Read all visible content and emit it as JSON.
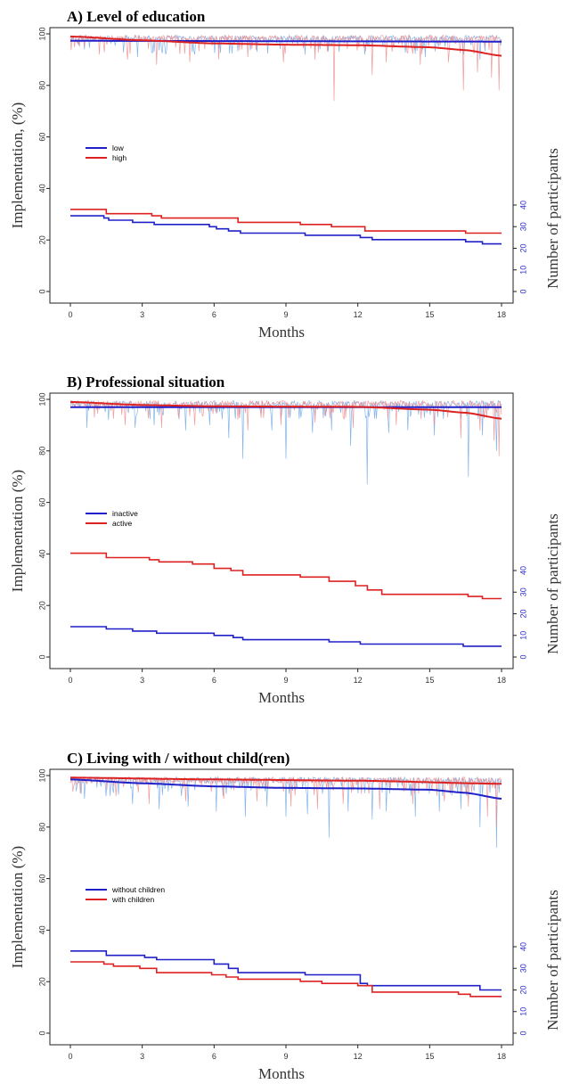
{
  "chart_data": [
    {
      "type": "line",
      "title": "A) Level of education",
      "ylabel": "Implementation, (%)",
      "xlabel": "Months",
      "y2label": "Number of participants",
      "xlim": [
        0,
        18
      ],
      "ylim": [
        0,
        100
      ],
      "y2lim": [
        0,
        40
      ],
      "xticks": [
        "0",
        "3",
        "6",
        "9",
        "12",
        "15",
        "18"
      ],
      "yticks": [
        "0",
        "20",
        "40",
        "60",
        "80",
        "100"
      ],
      "y2ticks": [
        "0",
        "10",
        "20",
        "30",
        "40"
      ],
      "legend": {
        "position": "left-middle"
      },
      "series": [
        {
          "name": "low",
          "color": "#2020c8",
          "noise_color": "#6fa8e8",
          "implementation_trend": [
            [
              0,
              97.3
            ],
            [
              18,
              97.0
            ]
          ],
          "participants": [
            [
              0,
              35
            ],
            [
              1.4,
              34
            ],
            [
              1.6,
              33
            ],
            [
              2.6,
              32
            ],
            [
              3.5,
              31
            ],
            [
              5.8,
              30
            ],
            [
              6.1,
              29
            ],
            [
              6.6,
              28
            ],
            [
              7.1,
              27
            ],
            [
              9.8,
              26
            ],
            [
              12.1,
              25
            ],
            [
              12.6,
              24
            ],
            [
              16.5,
              23
            ],
            [
              17.2,
              22
            ],
            [
              18,
              22
            ]
          ],
          "dips": [
            [
              0.6,
              94
            ],
            [
              2.8,
              91
            ],
            [
              3.5,
              93
            ],
            [
              5.2,
              92
            ],
            [
              7.8,
              93
            ],
            [
              9.8,
              92
            ],
            [
              11.2,
              93
            ],
            [
              12.3,
              92
            ],
            [
              14.8,
              91
            ],
            [
              16.4,
              92
            ],
            [
              17.1,
              90
            ]
          ]
        },
        {
          "name": "high",
          "color": "#dd2222",
          "noise_color": "#f08a8a",
          "implementation_trend": [
            [
              0,
              99.0
            ],
            [
              3,
              97.5
            ],
            [
              6,
              96.3
            ],
            [
              9,
              95.8
            ],
            [
              12,
              95.6
            ],
            [
              15,
              94.8
            ],
            [
              16.5,
              93.7
            ],
            [
              18,
              91.5
            ]
          ],
          "participants": [
            [
              0,
              38
            ],
            [
              1.5,
              36
            ],
            [
              3.4,
              35
            ],
            [
              3.8,
              34
            ],
            [
              7.0,
              32
            ],
            [
              9.6,
              31
            ],
            [
              10.9,
              30
            ],
            [
              12.3,
              28
            ],
            [
              16.5,
              27
            ],
            [
              18,
              27
            ]
          ],
          "dips": [
            [
              0.3,
              96
            ],
            [
              1.2,
              92
            ],
            [
              2.4,
              90
            ],
            [
              3.6,
              88
            ],
            [
              5.0,
              89
            ],
            [
              6.2,
              90
            ],
            [
              7.4,
              91
            ],
            [
              8.9,
              89
            ],
            [
              10.2,
              90
            ],
            [
              11.0,
              74
            ],
            [
              12.6,
              84
            ],
            [
              13.2,
              89
            ],
            [
              14.6,
              88
            ],
            [
              15.8,
              89
            ],
            [
              16.4,
              78
            ],
            [
              17.0,
              85
            ],
            [
              17.6,
              83
            ],
            [
              17.9,
              78
            ]
          ]
        }
      ]
    },
    {
      "type": "line",
      "title": "B) Professional situation",
      "ylabel": "Implementation (%)",
      "xlabel": "Months",
      "y2label": "Number of participants",
      "xlim": [
        0,
        18
      ],
      "ylim": [
        0,
        100
      ],
      "y2lim": [
        0,
        40
      ],
      "xticks": [
        "0",
        "3",
        "6",
        "9",
        "12",
        "15",
        "18"
      ],
      "yticks": [
        "0",
        "20",
        "40",
        "60",
        "80",
        "100"
      ],
      "y2ticks": [
        "0",
        "10",
        "20",
        "30",
        "40"
      ],
      "legend": {
        "position": "left-middle"
      },
      "series": [
        {
          "name": "inactive",
          "color": "#2020c8",
          "noise_color": "#6fa8e8",
          "implementation_trend": [
            [
              0,
              97.0
            ],
            [
              18,
              97.0
            ]
          ],
          "participants": [
            [
              0,
              14
            ],
            [
              1.5,
              13
            ],
            [
              2.6,
              12
            ],
            [
              3.6,
              11
            ],
            [
              6.0,
              10
            ],
            [
              6.8,
              9
            ],
            [
              7.2,
              8
            ],
            [
              10.8,
              7
            ],
            [
              12.1,
              6
            ],
            [
              16.4,
              5
            ],
            [
              18,
              5
            ]
          ],
          "dips": [
            [
              0.7,
              89
            ],
            [
              1.6,
              92
            ],
            [
              2.7,
              89
            ],
            [
              3.5,
              90
            ],
            [
              4.8,
              88
            ],
            [
              5.8,
              90
            ],
            [
              6.6,
              85
            ],
            [
              7.2,
              77
            ],
            [
              8.4,
              88
            ],
            [
              9.0,
              77
            ],
            [
              10.1,
              87
            ],
            [
              10.9,
              88
            ],
            [
              11.7,
              82
            ],
            [
              12.4,
              67
            ],
            [
              13.3,
              87
            ],
            [
              14.1,
              88
            ],
            [
              15.2,
              86
            ],
            [
              16.6,
              70
            ],
            [
              17.2,
              86
            ],
            [
              17.8,
              80
            ]
          ]
        },
        {
          "name": "active",
          "color": "#dd2222",
          "noise_color": "#f08a8a",
          "implementation_trend": [
            [
              0,
              99.0
            ],
            [
              3,
              97.8
            ],
            [
              6,
              97.3
            ],
            [
              9,
              97.2
            ],
            [
              12,
              97.1
            ],
            [
              15,
              96.0
            ],
            [
              16.5,
              94.8
            ],
            [
              18,
              92.5
            ]
          ],
          "participants": [
            [
              0,
              48
            ],
            [
              1.5,
              46
            ],
            [
              3.3,
              45
            ],
            [
              3.7,
              44
            ],
            [
              5.1,
              43
            ],
            [
              6.0,
              41
            ],
            [
              6.7,
              40
            ],
            [
              7.2,
              38
            ],
            [
              9.6,
              37
            ],
            [
              10.8,
              35
            ],
            [
              11.9,
              33
            ],
            [
              12.4,
              31
            ],
            [
              13.0,
              29
            ],
            [
              16.6,
              28
            ],
            [
              17.2,
              27
            ],
            [
              18,
              27
            ]
          ],
          "dips": [
            [
              1.0,
              93
            ],
            [
              2.3,
              90
            ],
            [
              3.8,
              89
            ],
            [
              5.2,
              90
            ],
            [
              7.4,
              88
            ],
            [
              8.8,
              90
            ],
            [
              10.2,
              91
            ],
            [
              11.8,
              89
            ],
            [
              13.6,
              90
            ],
            [
              15.2,
              90
            ],
            [
              16.3,
              85
            ],
            [
              17.1,
              88
            ],
            [
              17.7,
              84
            ],
            [
              17.9,
              78
            ]
          ]
        }
      ]
    },
    {
      "type": "line",
      "title": "C) Living with / without child(ren)",
      "ylabel": "Implementation (%)",
      "xlabel": "Months",
      "y2label": "Number of participants",
      "xlim": [
        0,
        18
      ],
      "ylim": [
        0,
        100
      ],
      "y2lim": [
        0,
        40
      ],
      "xticks": [
        "0",
        "3",
        "6",
        "9",
        "12",
        "15",
        "18"
      ],
      "yticks": [
        "0",
        "20",
        "40",
        "60",
        "80",
        "100"
      ],
      "y2ticks": [
        "0",
        "10",
        "20",
        "30",
        "40"
      ],
      "legend": {
        "position": "left-middle"
      },
      "series": [
        {
          "name": "without children",
          "color": "#2020c8",
          "noise_color": "#6fa8e8",
          "implementation_trend": [
            [
              0,
              98.5
            ],
            [
              3,
              97.0
            ],
            [
              6,
              95.8
            ],
            [
              9,
              95.2
            ],
            [
              12,
              95.0
            ],
            [
              15,
              94.5
            ],
            [
              16.5,
              93.3
            ],
            [
              18,
              91.0
            ]
          ],
          "participants": [
            [
              0,
              38
            ],
            [
              1.5,
              36
            ],
            [
              3.1,
              35
            ],
            [
              3.6,
              34
            ],
            [
              6.0,
              32
            ],
            [
              6.6,
              30
            ],
            [
              7.0,
              28
            ],
            [
              9.8,
              27
            ],
            [
              12.1,
              23
            ],
            [
              12.4,
              22
            ],
            [
              17.1,
              20
            ],
            [
              18,
              20
            ]
          ],
          "dips": [
            [
              0.6,
              91
            ],
            [
              1.5,
              92
            ],
            [
              2.6,
              89
            ],
            [
              3.7,
              87
            ],
            [
              4.9,
              88
            ],
            [
              6.1,
              86
            ],
            [
              7.3,
              84
            ],
            [
              8.2,
              88
            ],
            [
              9.0,
              84
            ],
            [
              9.9,
              85
            ],
            [
              10.8,
              76
            ],
            [
              11.6,
              86
            ],
            [
              12.6,
              83
            ],
            [
              13.2,
              86
            ],
            [
              14.4,
              84
            ],
            [
              15.4,
              86
            ],
            [
              16.3,
              87
            ],
            [
              17.1,
              80
            ],
            [
              17.8,
              72
            ]
          ]
        },
        {
          "name": "with children",
          "color": "#dd2222",
          "noise_color": "#f08a8a",
          "implementation_trend": [
            [
              0,
              99.2
            ],
            [
              6,
              98.5
            ],
            [
              12,
              98.0
            ],
            [
              18,
              96.8
            ]
          ],
          "participants": [
            [
              0,
              33
            ],
            [
              1.4,
              32
            ],
            [
              1.8,
              31
            ],
            [
              2.9,
              30
            ],
            [
              3.6,
              28
            ],
            [
              5.9,
              27
            ],
            [
              6.5,
              26
            ],
            [
              7.0,
              25
            ],
            [
              9.6,
              24
            ],
            [
              10.5,
              23
            ],
            [
              12.0,
              22
            ],
            [
              12.6,
              19
            ],
            [
              16.2,
              18
            ],
            [
              16.7,
              17
            ],
            [
              18,
              17
            ]
          ],
          "dips": [
            [
              0.4,
              93
            ],
            [
              1.9,
              92
            ],
            [
              3.3,
              89
            ],
            [
              4.8,
              90
            ],
            [
              6.4,
              91
            ],
            [
              7.8,
              90
            ],
            [
              9.2,
              88
            ],
            [
              10.3,
              87
            ],
            [
              11.4,
              89
            ],
            [
              12.9,
              87
            ],
            [
              14.3,
              89
            ],
            [
              15.6,
              90
            ],
            [
              16.6,
              88
            ],
            [
              17.4,
              84
            ],
            [
              17.8,
              80
            ]
          ]
        }
      ]
    }
  ]
}
